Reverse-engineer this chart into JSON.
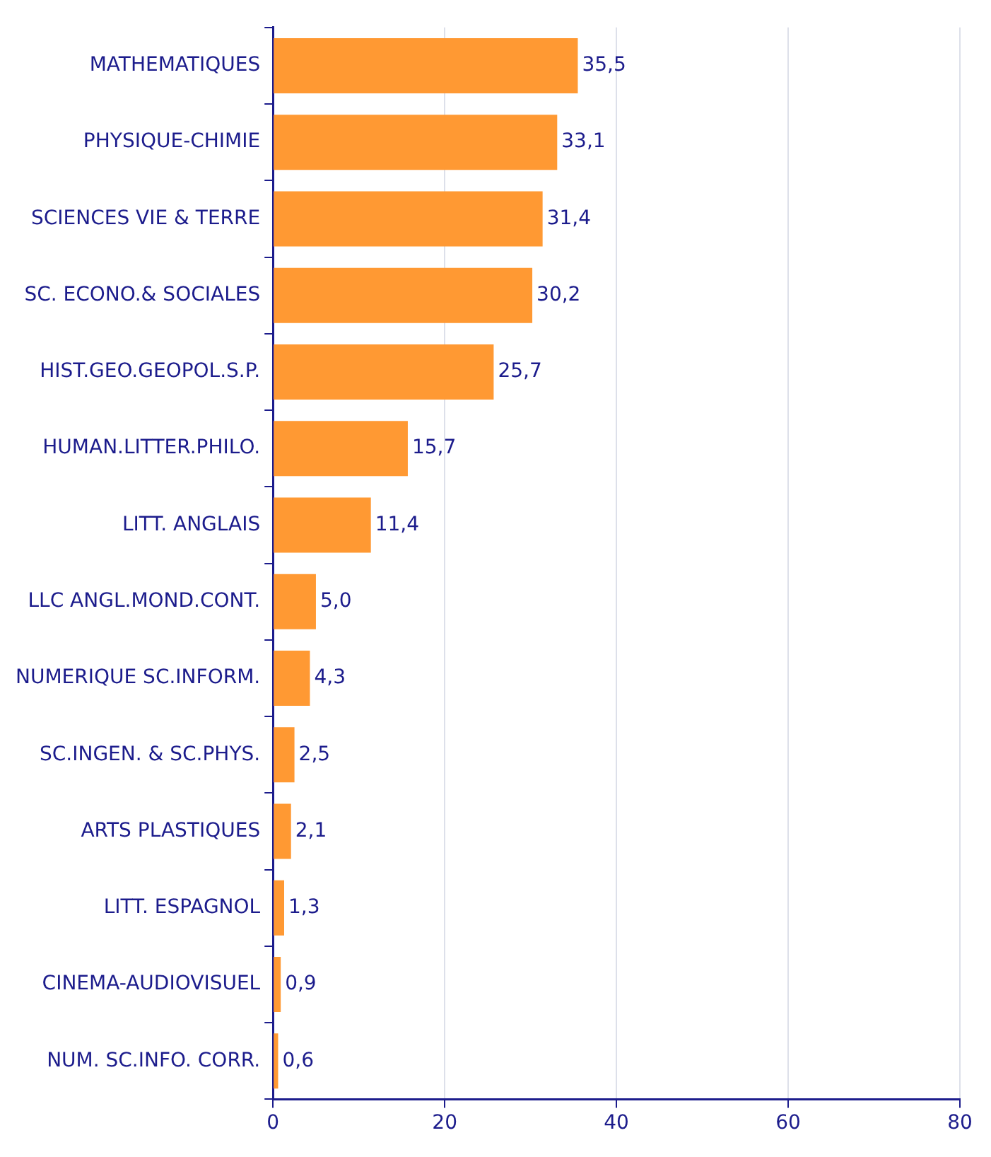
{
  "chart_data": {
    "type": "bar",
    "orientation": "horizontal",
    "categories": [
      "MATHEMATIQUES",
      "PHYSIQUE-CHIMIE",
      "SCIENCES VIE & TERRE",
      "SC. ECONO.& SOCIALES",
      "HIST.GEO.GEOPOL.S.P.",
      "HUMAN.LITTER.PHILO.",
      "LITT. ANGLAIS",
      "LLC ANGL.MOND.CONT.",
      "NUMERIQUE SC.INFORM.",
      "SC.INGEN. & SC.PHYS.",
      "ARTS PLASTIQUES",
      "LITT. ESPAGNOL",
      "CINEMA-AUDIOVISUEL",
      "NUM. SC.INFO. CORR."
    ],
    "values": [
      35.5,
      33.1,
      31.4,
      30.2,
      25.7,
      15.7,
      11.4,
      5.0,
      4.3,
      2.5,
      2.1,
      1.3,
      0.9,
      0.6
    ],
    "value_labels": [
      "35,5",
      "33,1",
      "31,4",
      "30,2",
      "25,7",
      "15,7",
      "11,4",
      "5,0",
      "4,3",
      "2,5",
      "2,1",
      "1,3",
      "0,9",
      "0,6"
    ],
    "color": "#ff9933",
    "xlim": [
      0,
      80
    ],
    "xticks": [
      0,
      20,
      40,
      60,
      80
    ],
    "grid": "x",
    "legend": false
  }
}
